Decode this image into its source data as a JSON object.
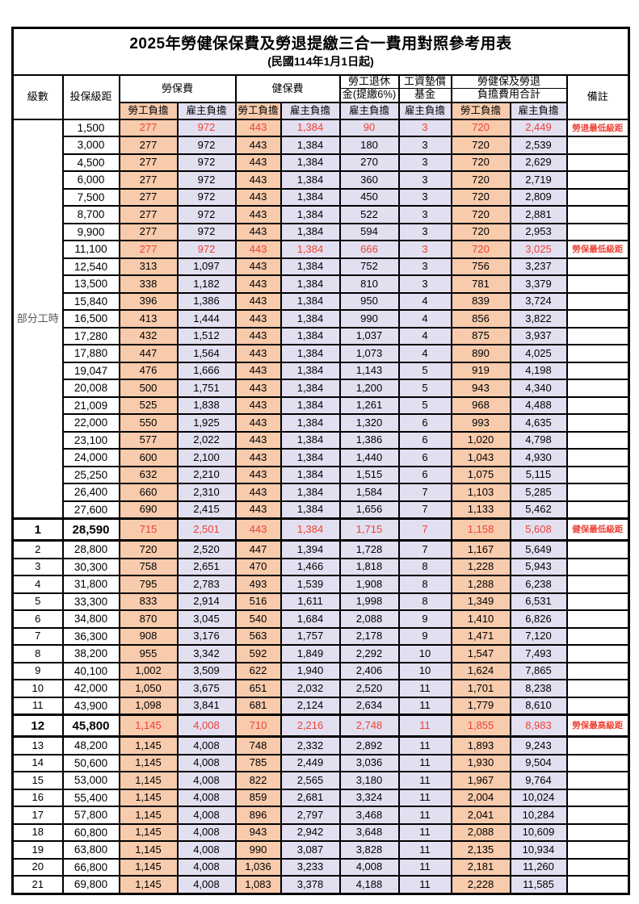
{
  "title": "2025年勞健保保費及勞退提繳三合一費用對照參考用表",
  "subtitle": "(民國114年1月1日起)",
  "header": {
    "level": "級數",
    "bracket": "投保級距",
    "labor_insurance": "勞保費",
    "health_insurance": "健保費",
    "pension_line1": "勞工退休",
    "pension_line2": "金(提繳6%)",
    "wage_fund_line1": "工資墊償",
    "wage_fund_line2": "基金",
    "total_line1": "勞健保及勞退",
    "total_line2": "負擔費用合計",
    "employee_label": "勞工負擔",
    "employer_label": "雇主負擔",
    "remark": "備註"
  },
  "part_time_label": "部分工時",
  "colors": {
    "employee_bg": "#F8CBAD",
    "employer_bg": "#E2DFF0",
    "highlight_red": "#EE4234",
    "border": "#000000",
    "group_label_gray": "#595959"
  },
  "part_time_rows": [
    {
      "bracket": "1,500",
      "li_emp": "277",
      "li_er": "972",
      "hi_emp": "443",
      "hi_er": "1,384",
      "pension": "90",
      "fund": "3",
      "tot_emp": "720",
      "tot_er": "2,449",
      "remark": "勞退最低級距",
      "red": true
    },
    {
      "bracket": "3,000",
      "li_emp": "277",
      "li_er": "972",
      "hi_emp": "443",
      "hi_er": "1,384",
      "pension": "180",
      "fund": "3",
      "tot_emp": "720",
      "tot_er": "2,539"
    },
    {
      "bracket": "4,500",
      "li_emp": "277",
      "li_er": "972",
      "hi_emp": "443",
      "hi_er": "1,384",
      "pension": "270",
      "fund": "3",
      "tot_emp": "720",
      "tot_er": "2,629"
    },
    {
      "bracket": "6,000",
      "li_emp": "277",
      "li_er": "972",
      "hi_emp": "443",
      "hi_er": "1,384",
      "pension": "360",
      "fund": "3",
      "tot_emp": "720",
      "tot_er": "2,719"
    },
    {
      "bracket": "7,500",
      "li_emp": "277",
      "li_er": "972",
      "hi_emp": "443",
      "hi_er": "1,384",
      "pension": "450",
      "fund": "3",
      "tot_emp": "720",
      "tot_er": "2,809"
    },
    {
      "bracket": "8,700",
      "li_emp": "277",
      "li_er": "972",
      "hi_emp": "443",
      "hi_er": "1,384",
      "pension": "522",
      "fund": "3",
      "tot_emp": "720",
      "tot_er": "2,881"
    },
    {
      "bracket": "9,900",
      "li_emp": "277",
      "li_er": "972",
      "hi_emp": "443",
      "hi_er": "1,384",
      "pension": "594",
      "fund": "3",
      "tot_emp": "720",
      "tot_er": "2,953"
    },
    {
      "bracket": "11,100",
      "li_emp": "277",
      "li_er": "972",
      "hi_emp": "443",
      "hi_er": "1,384",
      "pension": "666",
      "fund": "3",
      "tot_emp": "720",
      "tot_er": "3,025",
      "remark": "勞保最低級距",
      "red": true
    },
    {
      "bracket": "12,540",
      "li_emp": "313",
      "li_er": "1,097",
      "hi_emp": "443",
      "hi_er": "1,384",
      "pension": "752",
      "fund": "3",
      "tot_emp": "756",
      "tot_er": "3,237"
    },
    {
      "bracket": "13,500",
      "li_emp": "338",
      "li_er": "1,182",
      "hi_emp": "443",
      "hi_er": "1,384",
      "pension": "810",
      "fund": "3",
      "tot_emp": "781",
      "tot_er": "3,379"
    },
    {
      "bracket": "15,840",
      "li_emp": "396",
      "li_er": "1,386",
      "hi_emp": "443",
      "hi_er": "1,384",
      "pension": "950",
      "fund": "4",
      "tot_emp": "839",
      "tot_er": "3,724"
    },
    {
      "bracket": "16,500",
      "li_emp": "413",
      "li_er": "1,444",
      "hi_emp": "443",
      "hi_er": "1,384",
      "pension": "990",
      "fund": "4",
      "tot_emp": "856",
      "tot_er": "3,822"
    },
    {
      "bracket": "17,280",
      "li_emp": "432",
      "li_er": "1,512",
      "hi_emp": "443",
      "hi_er": "1,384",
      "pension": "1,037",
      "fund": "4",
      "tot_emp": "875",
      "tot_er": "3,937"
    },
    {
      "bracket": "17,880",
      "li_emp": "447",
      "li_er": "1,564",
      "hi_emp": "443",
      "hi_er": "1,384",
      "pension": "1,073",
      "fund": "4",
      "tot_emp": "890",
      "tot_er": "4,025"
    },
    {
      "bracket": "19,047",
      "li_emp": "476",
      "li_er": "1,666",
      "hi_emp": "443",
      "hi_er": "1,384",
      "pension": "1,143",
      "fund": "5",
      "tot_emp": "919",
      "tot_er": "4,198"
    },
    {
      "bracket": "20,008",
      "li_emp": "500",
      "li_er": "1,751",
      "hi_emp": "443",
      "hi_er": "1,384",
      "pension": "1,200",
      "fund": "5",
      "tot_emp": "943",
      "tot_er": "4,340"
    },
    {
      "bracket": "21,009",
      "li_emp": "525",
      "li_er": "1,838",
      "hi_emp": "443",
      "hi_er": "1,384",
      "pension": "1,261",
      "fund": "5",
      "tot_emp": "968",
      "tot_er": "4,488"
    },
    {
      "bracket": "22,000",
      "li_emp": "550",
      "li_er": "1,925",
      "hi_emp": "443",
      "hi_er": "1,384",
      "pension": "1,320",
      "fund": "6",
      "tot_emp": "993",
      "tot_er": "4,635"
    },
    {
      "bracket": "23,100",
      "li_emp": "577",
      "li_er": "2,022",
      "hi_emp": "443",
      "hi_er": "1,384",
      "pension": "1,386",
      "fund": "6",
      "tot_emp": "1,020",
      "tot_er": "4,798"
    },
    {
      "bracket": "24,000",
      "li_emp": "600",
      "li_er": "2,100",
      "hi_emp": "443",
      "hi_er": "1,384",
      "pension": "1,440",
      "fund": "6",
      "tot_emp": "1,043",
      "tot_er": "4,930"
    },
    {
      "bracket": "25,250",
      "li_emp": "632",
      "li_er": "2,210",
      "hi_emp": "443",
      "hi_er": "1,384",
      "pension": "1,515",
      "fund": "6",
      "tot_emp": "1,075",
      "tot_er": "5,115"
    },
    {
      "bracket": "26,400",
      "li_emp": "660",
      "li_er": "2,310",
      "hi_emp": "443",
      "hi_er": "1,384",
      "pension": "1,584",
      "fund": "7",
      "tot_emp": "1,103",
      "tot_er": "5,285"
    },
    {
      "bracket": "27,600",
      "li_emp": "690",
      "li_er": "2,415",
      "hi_emp": "443",
      "hi_er": "1,384",
      "pension": "1,656",
      "fund": "7",
      "tot_emp": "1,133",
      "tot_er": "5,462"
    }
  ],
  "level_rows": [
    {
      "level": "1",
      "bracket": "28,590",
      "li_emp": "715",
      "li_er": "2,501",
      "hi_emp": "443",
      "hi_er": "1,384",
      "pension": "1,715",
      "fund": "7",
      "tot_emp": "1,158",
      "tot_er": "5,608",
      "remark": "健保最低級距",
      "red": true,
      "special": true
    },
    {
      "level": "2",
      "bracket": "28,800",
      "li_emp": "720",
      "li_er": "2,520",
      "hi_emp": "447",
      "hi_er": "1,394",
      "pension": "1,728",
      "fund": "7",
      "tot_emp": "1,167",
      "tot_er": "5,649"
    },
    {
      "level": "3",
      "bracket": "30,300",
      "li_emp": "758",
      "li_er": "2,651",
      "hi_emp": "470",
      "hi_er": "1,466",
      "pension": "1,818",
      "fund": "8",
      "tot_emp": "1,228",
      "tot_er": "5,943"
    },
    {
      "level": "4",
      "bracket": "31,800",
      "li_emp": "795",
      "li_er": "2,783",
      "hi_emp": "493",
      "hi_er": "1,539",
      "pension": "1,908",
      "fund": "8",
      "tot_emp": "1,288",
      "tot_er": "6,238"
    },
    {
      "level": "5",
      "bracket": "33,300",
      "li_emp": "833",
      "li_er": "2,914",
      "hi_emp": "516",
      "hi_er": "1,611",
      "pension": "1,998",
      "fund": "8",
      "tot_emp": "1,349",
      "tot_er": "6,531"
    },
    {
      "level": "6",
      "bracket": "34,800",
      "li_emp": "870",
      "li_er": "3,045",
      "hi_emp": "540",
      "hi_er": "1,684",
      "pension": "2,088",
      "fund": "9",
      "tot_emp": "1,410",
      "tot_er": "6,826"
    },
    {
      "level": "7",
      "bracket": "36,300",
      "li_emp": "908",
      "li_er": "3,176",
      "hi_emp": "563",
      "hi_er": "1,757",
      "pension": "2,178",
      "fund": "9",
      "tot_emp": "1,471",
      "tot_er": "7,120"
    },
    {
      "level": "8",
      "bracket": "38,200",
      "li_emp": "955",
      "li_er": "3,342",
      "hi_emp": "592",
      "hi_er": "1,849",
      "pension": "2,292",
      "fund": "10",
      "tot_emp": "1,547",
      "tot_er": "7,493"
    },
    {
      "level": "9",
      "bracket": "40,100",
      "li_emp": "1,002",
      "li_er": "3,509",
      "hi_emp": "622",
      "hi_er": "1,940",
      "pension": "2,406",
      "fund": "10",
      "tot_emp": "1,624",
      "tot_er": "7,865"
    },
    {
      "level": "10",
      "bracket": "42,000",
      "li_emp": "1,050",
      "li_er": "3,675",
      "hi_emp": "651",
      "hi_er": "2,032",
      "pension": "2,520",
      "fund": "11",
      "tot_emp": "1,701",
      "tot_er": "8,238"
    },
    {
      "level": "11",
      "bracket": "43,900",
      "li_emp": "1,098",
      "li_er": "3,841",
      "hi_emp": "681",
      "hi_er": "2,124",
      "pension": "2,634",
      "fund": "11",
      "tot_emp": "1,779",
      "tot_er": "8,610"
    },
    {
      "level": "12",
      "bracket": "45,800",
      "li_emp": "1,145",
      "li_er": "4,008",
      "hi_emp": "710",
      "hi_er": "2,216",
      "pension": "2,748",
      "fund": "11",
      "tot_emp": "1,855",
      "tot_er": "8,983",
      "remark": "勞保最高級距",
      "red": true,
      "special": true
    },
    {
      "level": "13",
      "bracket": "48,200",
      "li_emp": "1,145",
      "li_er": "4,008",
      "hi_emp": "748",
      "hi_er": "2,332",
      "pension": "2,892",
      "fund": "11",
      "tot_emp": "1,893",
      "tot_er": "9,243"
    },
    {
      "level": "14",
      "bracket": "50,600",
      "li_emp": "1,145",
      "li_er": "4,008",
      "hi_emp": "785",
      "hi_er": "2,449",
      "pension": "3,036",
      "fund": "11",
      "tot_emp": "1,930",
      "tot_er": "9,504"
    },
    {
      "level": "15",
      "bracket": "53,000",
      "li_emp": "1,145",
      "li_er": "4,008",
      "hi_emp": "822",
      "hi_er": "2,565",
      "pension": "3,180",
      "fund": "11",
      "tot_emp": "1,967",
      "tot_er": "9,764"
    },
    {
      "level": "16",
      "bracket": "55,400",
      "li_emp": "1,145",
      "li_er": "4,008",
      "hi_emp": "859",
      "hi_er": "2,681",
      "pension": "3,324",
      "fund": "11",
      "tot_emp": "2,004",
      "tot_er": "10,024"
    },
    {
      "level": "17",
      "bracket": "57,800",
      "li_emp": "1,145",
      "li_er": "4,008",
      "hi_emp": "896",
      "hi_er": "2,797",
      "pension": "3,468",
      "fund": "11",
      "tot_emp": "2,041",
      "tot_er": "10,284"
    },
    {
      "level": "18",
      "bracket": "60,800",
      "li_emp": "1,145",
      "li_er": "4,008",
      "hi_emp": "943",
      "hi_er": "2,942",
      "pension": "3,648",
      "fund": "11",
      "tot_emp": "2,088",
      "tot_er": "10,609"
    },
    {
      "level": "19",
      "bracket": "63,800",
      "li_emp": "1,145",
      "li_er": "4,008",
      "hi_emp": "990",
      "hi_er": "3,087",
      "pension": "3,828",
      "fund": "11",
      "tot_emp": "2,135",
      "tot_er": "10,934"
    },
    {
      "level": "20",
      "bracket": "66,800",
      "li_emp": "1,145",
      "li_er": "4,008",
      "hi_emp": "1,036",
      "hi_er": "3,233",
      "pension": "4,008",
      "fund": "11",
      "tot_emp": "2,181",
      "tot_er": "11,260"
    },
    {
      "level": "21",
      "bracket": "69,800",
      "li_emp": "1,145",
      "li_er": "4,008",
      "hi_emp": "1,083",
      "hi_er": "3,378",
      "pension": "4,188",
      "fund": "11",
      "tot_emp": "2,228",
      "tot_er": "11,585"
    }
  ]
}
